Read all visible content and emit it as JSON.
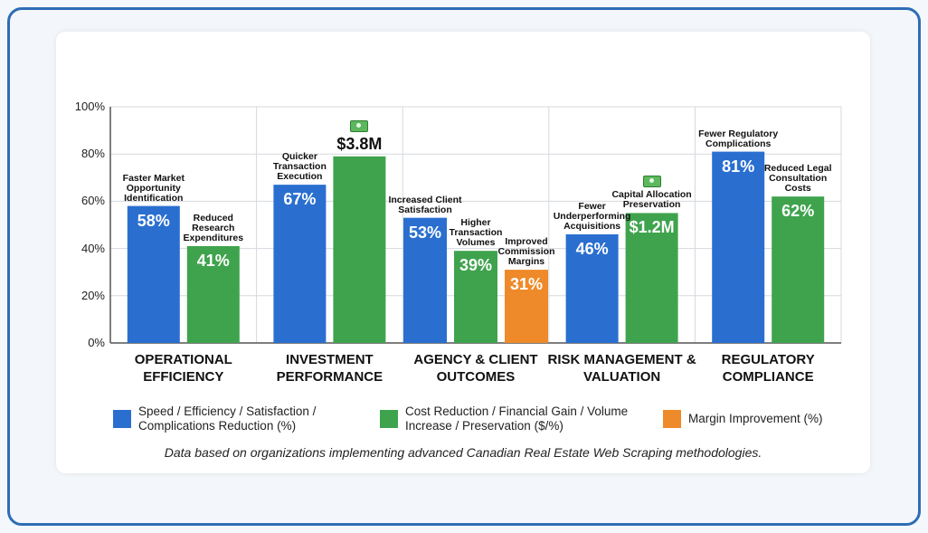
{
  "chart_data": {
    "type": "bar",
    "ylim": [
      0,
      100
    ],
    "yticks": [
      {
        "value": 0,
        "label": "0%"
      },
      {
        "value": 20,
        "label": "20%"
      },
      {
        "value": 40,
        "label": "40%"
      },
      {
        "value": 60,
        "label": "60%"
      },
      {
        "value": 80,
        "label": "80%"
      },
      {
        "value": 100,
        "label": "100%"
      }
    ],
    "grid": true,
    "series": [
      {
        "name": "Speed / Efficiency / Satisfaction / Complications Reduction (%)",
        "color": "#2a6fd0"
      },
      {
        "name": "Cost Reduction / Financial Gain / Volume Increase / Preservation ($/%)",
        "color": "#3fa34d"
      },
      {
        "name": "Margin Improvement (%)",
        "color": "#ee8a2a"
      }
    ],
    "groups": [
      {
        "name": "OPERATIONAL EFFICIENCY",
        "bars": [
          {
            "label": "Faster Market Opportunity Identification",
            "value": 58,
            "value_label": "58%",
            "series": 0
          },
          {
            "label": "Reduced Research Expenditures",
            "value": 41,
            "value_label": "41%",
            "series": 1
          }
        ]
      },
      {
        "name": "INVESTMENT PERFORMANCE",
        "bars": [
          {
            "label": "Quicker Transaction Execution",
            "value": 67,
            "value_label": "67%",
            "series": 0
          },
          {
            "value": 79,
            "annotation": "$3.8M",
            "series": 1
          }
        ]
      },
      {
        "name": "AGENCY & CLIENT OUTCOMES",
        "bars": [
          {
            "label": "Increased Client Satisfaction",
            "value": 53,
            "value_label": "53%",
            "series": 0
          },
          {
            "label": "Higher Transaction Volumes",
            "value": 39,
            "value_label": "39%",
            "series": 1
          },
          {
            "label": "Improved Commission Margins",
            "value": 31,
            "value_label": "31%",
            "series": 2
          }
        ]
      },
      {
        "name": "RISK MANAGEMENT & VALUATION",
        "bars": [
          {
            "label": "Fewer Underperforming Acquisitions",
            "value": 46,
            "value_label": "46%",
            "series": 0
          },
          {
            "label": "Capital Allocation Preservation",
            "value": 55,
            "annotation": "$1.2M",
            "series": 1
          }
        ]
      },
      {
        "name": "REGULATORY COMPLIANCE",
        "bars": [
          {
            "label": "Fewer Regulatory Complications",
            "value": 81,
            "value_label": "81%",
            "series": 0
          },
          {
            "label": "Reduced Legal Consultation Costs",
            "value": 62,
            "value_label": "62%",
            "series": 1
          }
        ]
      }
    ],
    "footnote": "Data based on organizations implementing advanced Canadian Real Estate Web Scraping methodologies."
  }
}
